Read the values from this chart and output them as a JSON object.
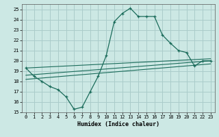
{
  "title": "",
  "xlabel": "Humidex (Indice chaleur)",
  "bg_color": "#cce8e4",
  "grid_color": "#aaccca",
  "line_color": "#1a6b5a",
  "xlim": [
    -0.5,
    23.5
  ],
  "ylim": [
    15,
    25.5
  ],
  "yticks": [
    15,
    16,
    17,
    18,
    19,
    20,
    21,
    22,
    23,
    24,
    25
  ],
  "xticks": [
    0,
    1,
    2,
    3,
    4,
    5,
    6,
    7,
    8,
    9,
    10,
    11,
    12,
    13,
    14,
    15,
    16,
    17,
    18,
    19,
    20,
    21,
    22,
    23
  ],
  "line1_x": [
    0,
    1,
    2,
    3,
    4,
    5,
    6,
    7,
    8,
    9,
    10,
    11,
    12,
    13,
    14,
    15,
    16,
    17,
    18,
    19,
    20,
    21,
    22,
    23
  ],
  "line1_y": [
    19.3,
    18.5,
    18.0,
    17.5,
    17.2,
    16.5,
    15.3,
    15.5,
    17.0,
    18.5,
    20.5,
    23.8,
    24.6,
    25.1,
    24.3,
    24.3,
    24.3,
    22.5,
    21.7,
    21.0,
    20.8,
    19.5,
    20.0,
    20.0
  ],
  "line2_x": [
    0,
    23
  ],
  "line2_y": [
    19.3,
    20.2
  ],
  "line3_x": [
    0,
    23
  ],
  "line3_y": [
    18.6,
    20.0
  ],
  "line4_x": [
    0,
    23
  ],
  "line4_y": [
    18.2,
    19.7
  ]
}
